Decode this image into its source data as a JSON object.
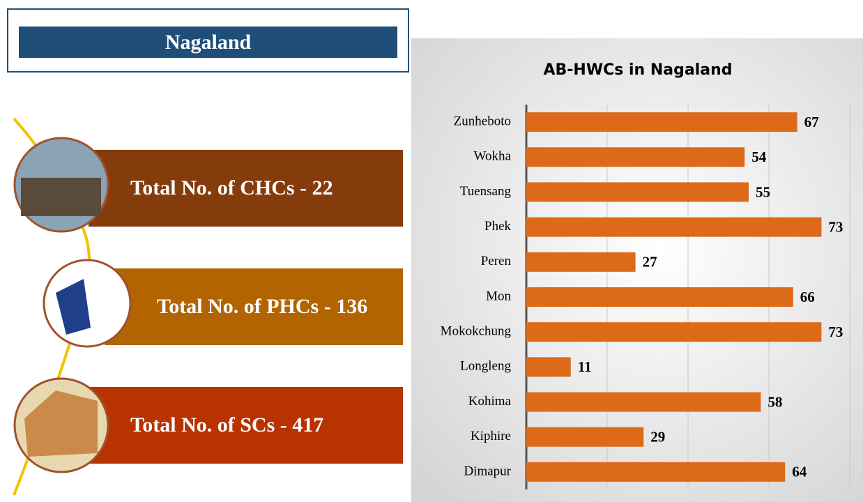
{
  "header": {
    "title": "Nagaland"
  },
  "stats": [
    "Total No. of CHCs - 22",
    "Total No. of PHCs - 136",
    "Total No. of SCs - 417"
  ],
  "chart_data": {
    "type": "bar",
    "orientation": "horizontal",
    "title": "AB-HWCs in Nagaland",
    "categories": [
      "Zunheboto",
      "Wokha",
      "Tuensang",
      "Phek",
      "Peren",
      "Mon",
      "Mokokchung",
      "Longleng",
      "Kohima",
      "Kiphire",
      "Dimapur"
    ],
    "values": [
      67,
      54,
      55,
      73,
      27,
      66,
      73,
      11,
      58,
      29,
      64
    ],
    "color": "#dd6a18",
    "xlim": [
      0,
      80
    ],
    "xticks": [
      0,
      20,
      40,
      60,
      80
    ],
    "grid": true,
    "tick_labels": false
  }
}
